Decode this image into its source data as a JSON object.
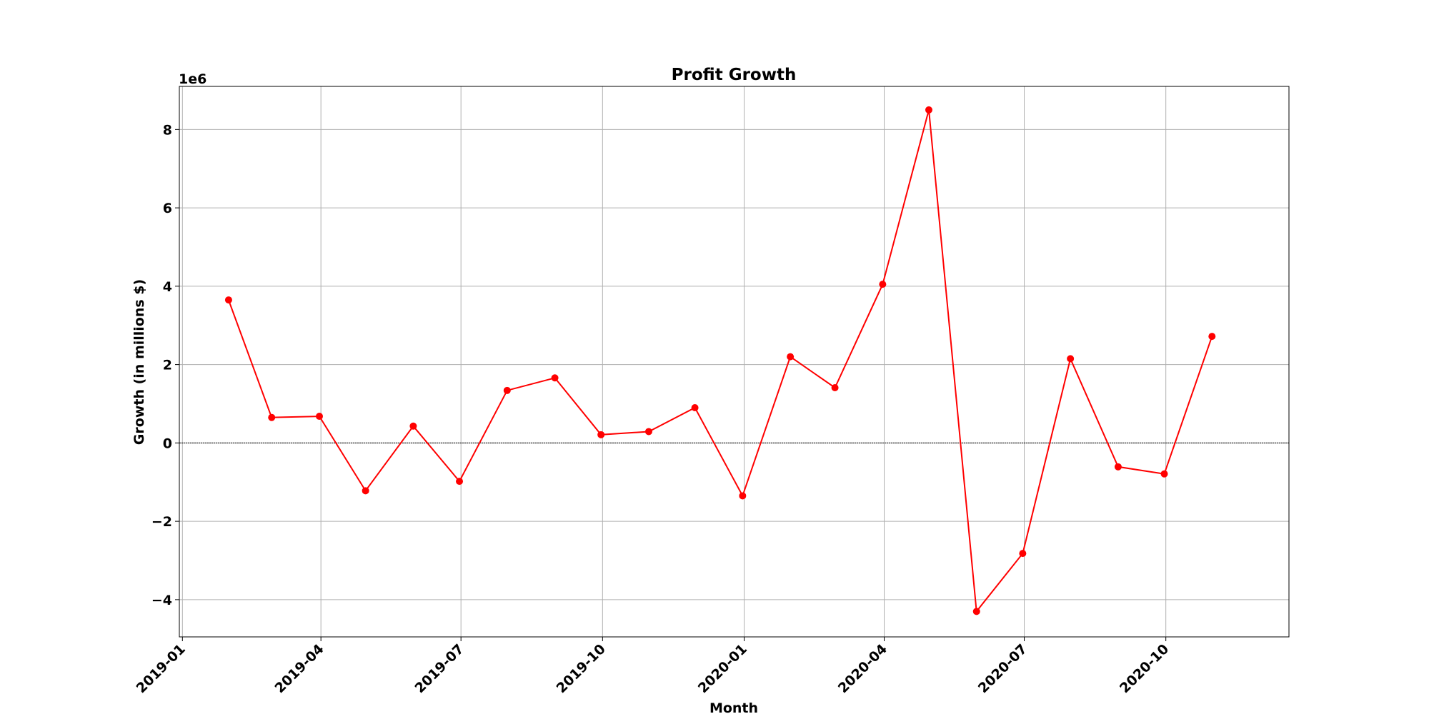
{
  "chart_data": {
    "type": "line",
    "title": "Profit Growth",
    "xlabel": "Month",
    "ylabel": "Growth (in millions $)",
    "y_offset_label": "1e6",
    "grid": true,
    "color": "#ff0000",
    "x_range": [
      "2018-12-30",
      "2020-12-20"
    ],
    "ylim": [
      -4.95,
      9.1
    ],
    "y_unit_scale": 1000000,
    "x_ticks": [
      {
        "date": "2019-01-01",
        "label": "2019-01"
      },
      {
        "date": "2019-04-01",
        "label": "2019-04"
      },
      {
        "date": "2019-07-01",
        "label": "2019-07"
      },
      {
        "date": "2019-10-01",
        "label": "2019-10"
      },
      {
        "date": "2020-01-01",
        "label": "2020-01"
      },
      {
        "date": "2020-04-01",
        "label": "2020-04"
      },
      {
        "date": "2020-07-01",
        "label": "2020-07"
      },
      {
        "date": "2020-10-01",
        "label": "2020-10"
      }
    ],
    "y_ticks": [
      {
        "value": 8,
        "label": "8"
      },
      {
        "value": 6,
        "label": "6"
      },
      {
        "value": 4,
        "label": "4"
      },
      {
        "value": 2,
        "label": "2"
      },
      {
        "value": 0,
        "label": "0"
      },
      {
        "value": -2,
        "label": "−2"
      },
      {
        "value": -4,
        "label": "−4"
      }
    ],
    "reference_line": 0,
    "series": [
      {
        "name": "Profit Growth",
        "x": [
          "2019-01-31",
          "2019-02-28",
          "2019-03-31",
          "2019-04-30",
          "2019-05-31",
          "2019-06-30",
          "2019-07-31",
          "2019-08-31",
          "2019-09-30",
          "2019-10-31",
          "2019-11-30",
          "2019-12-31",
          "2020-01-31",
          "2020-02-29",
          "2020-03-31",
          "2020-04-30",
          "2020-05-31",
          "2020-06-30",
          "2020-07-31",
          "2020-08-31",
          "2020-09-30",
          "2020-10-31"
        ],
        "values": [
          3.65,
          0.65,
          0.68,
          -1.22,
          0.43,
          -0.98,
          1.34,
          1.66,
          0.21,
          0.29,
          0.9,
          -1.35,
          2.2,
          1.41,
          4.05,
          8.5,
          -4.3,
          -2.82,
          2.15,
          -0.61,
          -0.79,
          2.72
        ]
      }
    ]
  }
}
